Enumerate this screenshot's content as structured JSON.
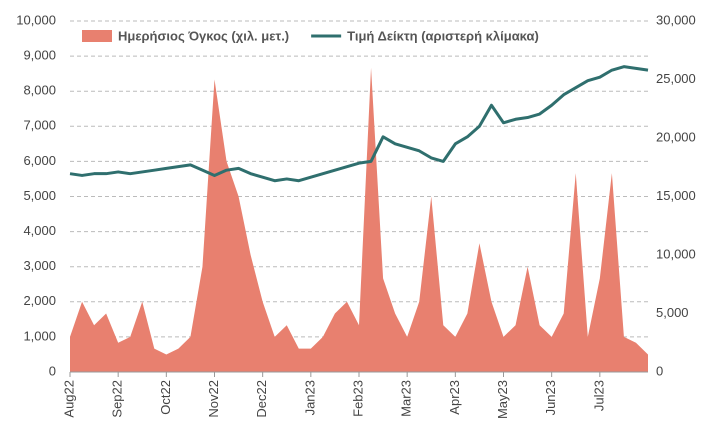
{
  "chart_data": {
    "type": "area-line",
    "categories": [
      "Aug22",
      null,
      null,
      null,
      "Sep22",
      null,
      null,
      null,
      "Oct22",
      null,
      null,
      null,
      "Nov22",
      null,
      null,
      null,
      "Dec22",
      null,
      null,
      null,
      "Jan23",
      null,
      null,
      null,
      "Feb23",
      null,
      null,
      null,
      "Mar23",
      null,
      null,
      null,
      "Apr23",
      null,
      null,
      null,
      "May23",
      null,
      null,
      null,
      "Jun23",
      null,
      null,
      null,
      "Jul23",
      null,
      null,
      null,
      null
    ],
    "series": [
      {
        "name": "Ημερήσιος Όγκος (χιλ. μετ.)",
        "type": "area",
        "color": "#e8806f",
        "axis": "y2",
        "values": [
          3000,
          6000,
          4000,
          5000,
          2500,
          3000,
          6000,
          2000,
          1500,
          2000,
          3000,
          9000,
          25000,
          18000,
          15000,
          10000,
          6000,
          3000,
          4000,
          2000,
          2000,
          3000,
          5000,
          6000,
          4000,
          26000,
          8000,
          5000,
          3000,
          6000,
          15000,
          4000,
          3000,
          5000,
          11000,
          6000,
          3000,
          4000,
          9000,
          4000,
          3000,
          5000,
          17000,
          3000,
          8000,
          17000,
          3000,
          2500,
          1500
        ]
      },
      {
        "name": "Τιμή Δείκτη (αριστερή κλίμακα)",
        "type": "line",
        "color": "#2f6f6e",
        "values": [
          5650,
          5600,
          5650,
          5650,
          5700,
          5650,
          5700,
          5750,
          5800,
          5850,
          5900,
          5750,
          5600,
          5750,
          5800,
          5650,
          5550,
          5450,
          5500,
          5450,
          5550,
          5650,
          5750,
          5850,
          5950,
          6000,
          6700,
          6500,
          6400,
          6300,
          6100,
          6000,
          6500,
          6700,
          7000,
          7600,
          7100,
          7200,
          7250,
          7350,
          7600,
          7900,
          8100,
          8300,
          8400,
          8600,
          8700,
          8650,
          8600
        ]
      }
    ],
    "ylim": [
      0,
      10000
    ],
    "yticks": [
      0,
      {
        "value": 1000,
        "label": "1,000"
      },
      {
        "value": 2000,
        "label": "2,000"
      },
      {
        "value": 3000,
        "label": "3,000"
      },
      {
        "value": 4000,
        "label": "4,000"
      },
      {
        "value": 5000,
        "label": "5,000"
      },
      {
        "value": 6000,
        "label": "6,000"
      },
      {
        "value": 7000,
        "label": "7,000"
      },
      {
        "value": 8000,
        "label": "8,000"
      },
      {
        "value": 9000,
        "label": "9,000"
      },
      {
        "value": 10000,
        "label": "10,000"
      }
    ],
    "y2lim": [
      0,
      30000
    ],
    "y2ticks": [
      0,
      {
        "value": 5000,
        "label": "5,000"
      },
      {
        "value": 10000,
        "label": "10,000"
      },
      {
        "value": 15000,
        "label": "15,000"
      },
      {
        "value": 20000,
        "label": "20,000"
      },
      {
        "value": 25000,
        "label": "25,000"
      },
      {
        "value": 30000,
        "label": "30,000"
      }
    ],
    "grid": true,
    "legend": "top"
  }
}
